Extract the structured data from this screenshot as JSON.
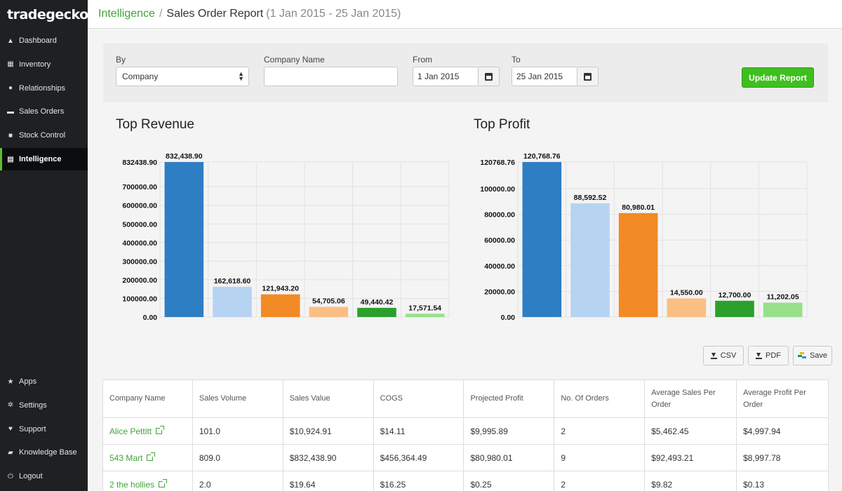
{
  "app": {
    "brand": "tradegecko"
  },
  "sidebar": {
    "items": [
      {
        "label": "Dashboard",
        "icon": "dashboard-icon",
        "glyph": "▲"
      },
      {
        "label": "Inventory",
        "icon": "inventory-icon",
        "glyph": "▦"
      },
      {
        "label": "Relationships",
        "icon": "relationships-icon",
        "glyph": "●"
      },
      {
        "label": "Sales Orders",
        "icon": "cart-icon",
        "glyph": "▬"
      },
      {
        "label": "Stock Control",
        "icon": "stock-control-icon",
        "glyph": "■"
      },
      {
        "label": "Intelligence",
        "icon": "chart-icon",
        "glyph": "▤",
        "active": true
      }
    ],
    "bottom_items": [
      {
        "label": "Apps",
        "icon": "star-icon",
        "glyph": "★"
      },
      {
        "label": "Settings",
        "icon": "gear-icon",
        "glyph": "✲"
      },
      {
        "label": "Support",
        "icon": "heart-icon",
        "glyph": "♥"
      },
      {
        "label": "Knowledge Base",
        "icon": "book-icon",
        "glyph": "▰"
      },
      {
        "label": "Logout",
        "icon": "power-icon",
        "glyph": "⏻"
      }
    ]
  },
  "header": {
    "breadcrumb_link": "Intelligence",
    "separator": "/",
    "title": "Sales Order Report",
    "range": "(1 Jan 2015 - 25 Jan 2015)"
  },
  "filters": {
    "by_label": "By",
    "by_value": "Company",
    "company_label": "Company Name",
    "company_value": "",
    "from_label": "From",
    "from_value": "1 Jan 2015",
    "to_label": "To",
    "to_value": "25 Jan 2015",
    "update_label": "Update Report"
  },
  "export": {
    "csv": "CSV",
    "pdf": "PDF",
    "save": "Save"
  },
  "colors": [
    "#2e7ec4",
    "#b7d3f2",
    "#f28a25",
    "#fbbf83",
    "#2ca02c",
    "#98df8a"
  ],
  "chart_data": [
    {
      "type": "bar",
      "title": "Top Revenue",
      "values": [
        832438.9,
        162618.6,
        121943.2,
        54705.06,
        49440.42,
        17571.54
      ],
      "value_labels": [
        "832,438.90",
        "162,618.60",
        "121,943.20",
        "54,705.06",
        "49,440.42",
        "17,571.54"
      ],
      "ylim": [
        0,
        832438.9
      ],
      "yticks": [
        0,
        100000,
        200000,
        300000,
        400000,
        500000,
        600000,
        700000,
        832438.9
      ],
      "ytick_labels": [
        "0.00",
        "100000.00",
        "200000.00",
        "300000.00",
        "400000.00",
        "500000.00",
        "600000.00",
        "700000.00",
        "832438.90"
      ],
      "grid": true
    },
    {
      "type": "bar",
      "title": "Top Profit",
      "values": [
        120768.76,
        88592.52,
        80980.01,
        14550.0,
        12700.0,
        11202.05
      ],
      "value_labels": [
        "120,768.76",
        "88,592.52",
        "80,980.01",
        "14,550.00",
        "12,700.00",
        "11,202.05"
      ],
      "ylim": [
        0,
        120768.76
      ],
      "yticks": [
        0,
        20000,
        40000,
        60000,
        80000,
        100000,
        120768.76
      ],
      "ytick_labels": [
        "0.00",
        "20000.00",
        "40000.00",
        "60000.00",
        "80000.00",
        "100000.00",
        "120768.76"
      ],
      "grid": true
    }
  ],
  "table": {
    "headers": [
      "Company Name",
      "Sales Volume",
      "Sales Value",
      "COGS",
      "Projected Profit",
      "No. Of Orders",
      "Average Sales Per Order",
      "Average Profit Per Order"
    ],
    "rows": [
      [
        "Alice Pettitt",
        "101.0",
        "$10,924.91",
        "$14.11",
        "$9,995.89",
        "2",
        "$5,462.45",
        "$4,997.94"
      ],
      [
        "543 Mart",
        "809.0",
        "$832,438.90",
        "$456,364.49",
        "$80,980.01",
        "9",
        "$92,493.21",
        "$8,997.78"
      ],
      [
        "2 the hollies",
        "2.0",
        "$19.64",
        "$16.25",
        "$0.25",
        "2",
        "$9.82",
        "$0.13"
      ]
    ]
  }
}
